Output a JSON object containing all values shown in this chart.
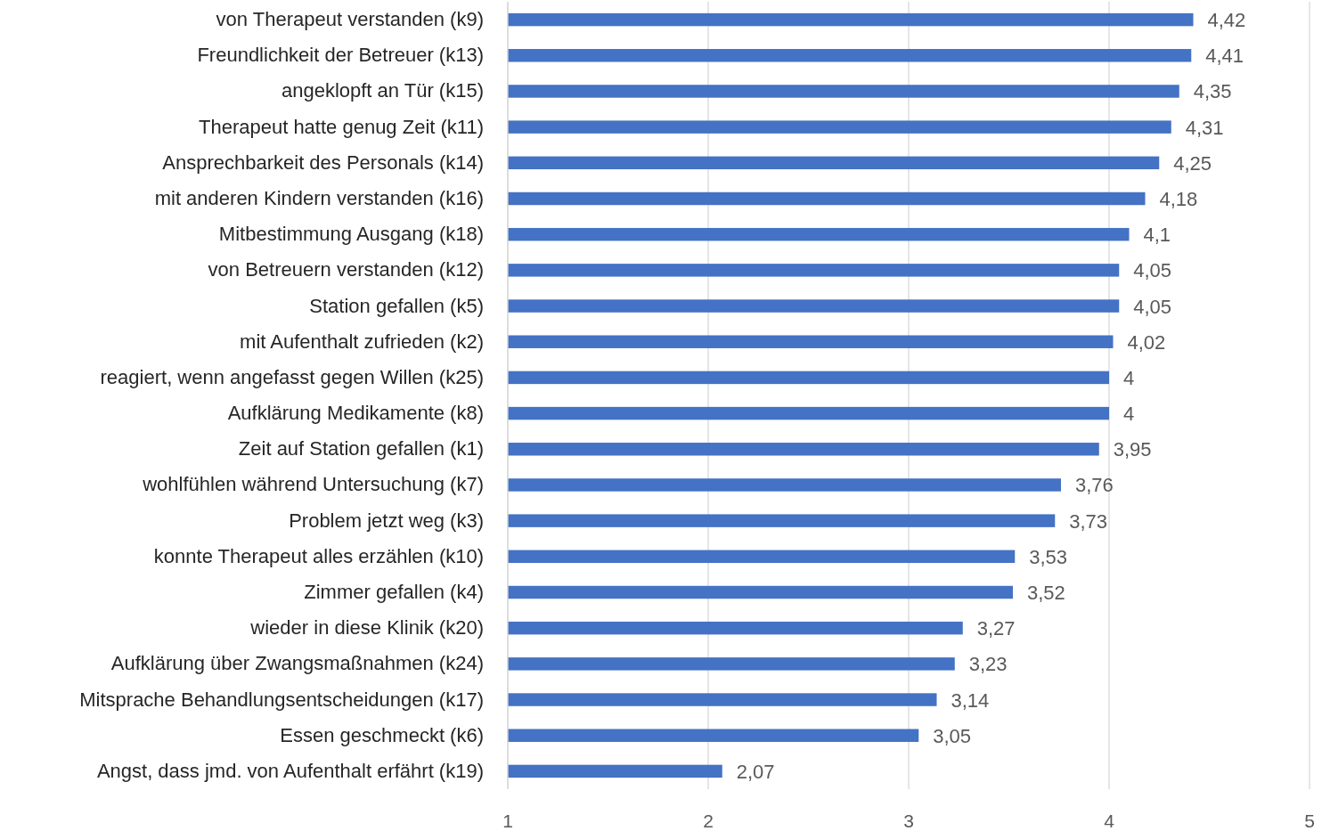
{
  "chart_data": {
    "type": "bar",
    "orientation": "horizontal",
    "categories": [
      "von Therapeut verstanden (k9)",
      "Freundlichkeit der Betreuer (k13)",
      "angeklopft an Tür (k15)",
      "Therapeut hatte genug Zeit (k11)",
      "Ansprechbarkeit des Personals (k14)",
      "mit anderen Kindern verstanden (k16)",
      "Mitbestimmung Ausgang (k18)",
      "von Betreuern verstanden (k12)",
      "Station gefallen (k5)",
      "mit Aufenthalt zufrieden (k2)",
      "reagiert, wenn angefasst gegen Willen (k25)",
      "Aufklärung Medikamente (k8)",
      "Zeit auf Station gefallen (k1)",
      "wohlfühlen während Untersuchung (k7)",
      "Problem jetzt weg (k3)",
      "konnte Therapeut alles erzählen (k10)",
      "Zimmer gefallen (k4)",
      "wieder in diese Klinik (k20)",
      "Aufklärung über Zwangsmaßnahmen (k24)",
      "Mitsprache Behandlungsentscheidungen (k17)",
      "Essen geschmeckt (k6)",
      "Angst, dass jmd. von Aufenthalt erfährt (k19)"
    ],
    "values": [
      4.42,
      4.41,
      4.35,
      4.31,
      4.25,
      4.18,
      4.1,
      4.05,
      4.05,
      4.02,
      4,
      4,
      3.95,
      3.76,
      3.73,
      3.53,
      3.52,
      3.27,
      3.23,
      3.14,
      3.05,
      2.07
    ],
    "value_labels": [
      "4,42",
      "4,41",
      "4,35",
      "4,31",
      "4,25",
      "4,18",
      "4,1",
      "4,05",
      "4,05",
      "4,02",
      "4",
      "4",
      "3,95",
      "3,76",
      "3,73",
      "3,53",
      "3,52",
      "3,27",
      "3,23",
      "3,14",
      "3,05",
      "2,07"
    ],
    "color": "#4472c4",
    "xlim": [
      1,
      5
    ],
    "xticks": [
      1,
      2,
      3,
      4,
      5
    ],
    "grid": "x"
  }
}
